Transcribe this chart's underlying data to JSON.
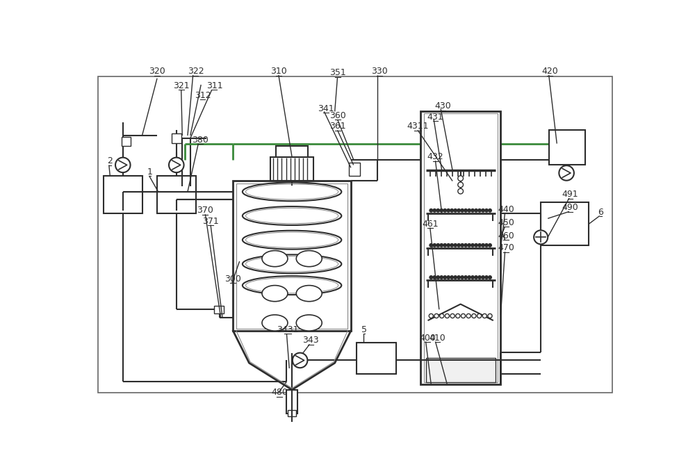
{
  "bg_color": "#ffffff",
  "lc": "#2d2d2d",
  "gc": "#888888",
  "grn": "#3a8a3a",
  "figsize": [
    10.0,
    6.82
  ],
  "dpi": 100
}
